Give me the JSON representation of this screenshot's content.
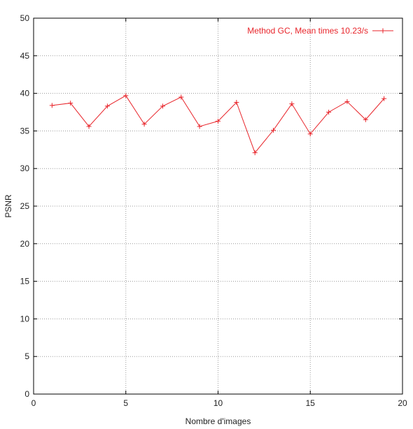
{
  "chart_data": {
    "type": "line",
    "title": "",
    "xlabel": "Nombre d'images",
    "ylabel": "PSNR",
    "xlim": [
      0,
      20
    ],
    "ylim": [
      0,
      50
    ],
    "x_ticks": [
      0,
      5,
      10,
      15,
      20
    ],
    "y_ticks": [
      0,
      5,
      10,
      15,
      20,
      25,
      30,
      35,
      40,
      45,
      50
    ],
    "grid": true,
    "legend_position": "top-right",
    "series": [
      {
        "name": "Method GC, Mean times 10.23/s",
        "color": "#e8252b",
        "marker": "plus",
        "x": [
          1,
          2,
          3,
          4,
          5,
          6,
          7,
          8,
          9,
          10,
          11,
          12,
          13,
          14,
          15,
          16,
          17,
          18,
          19
        ],
        "y": [
          38.4,
          38.7,
          35.6,
          38.3,
          39.7,
          35.9,
          38.3,
          39.5,
          35.6,
          36.3,
          38.8,
          32.1,
          35.1,
          38.6,
          34.6,
          37.5,
          38.9,
          36.5,
          39.3
        ]
      }
    ]
  }
}
